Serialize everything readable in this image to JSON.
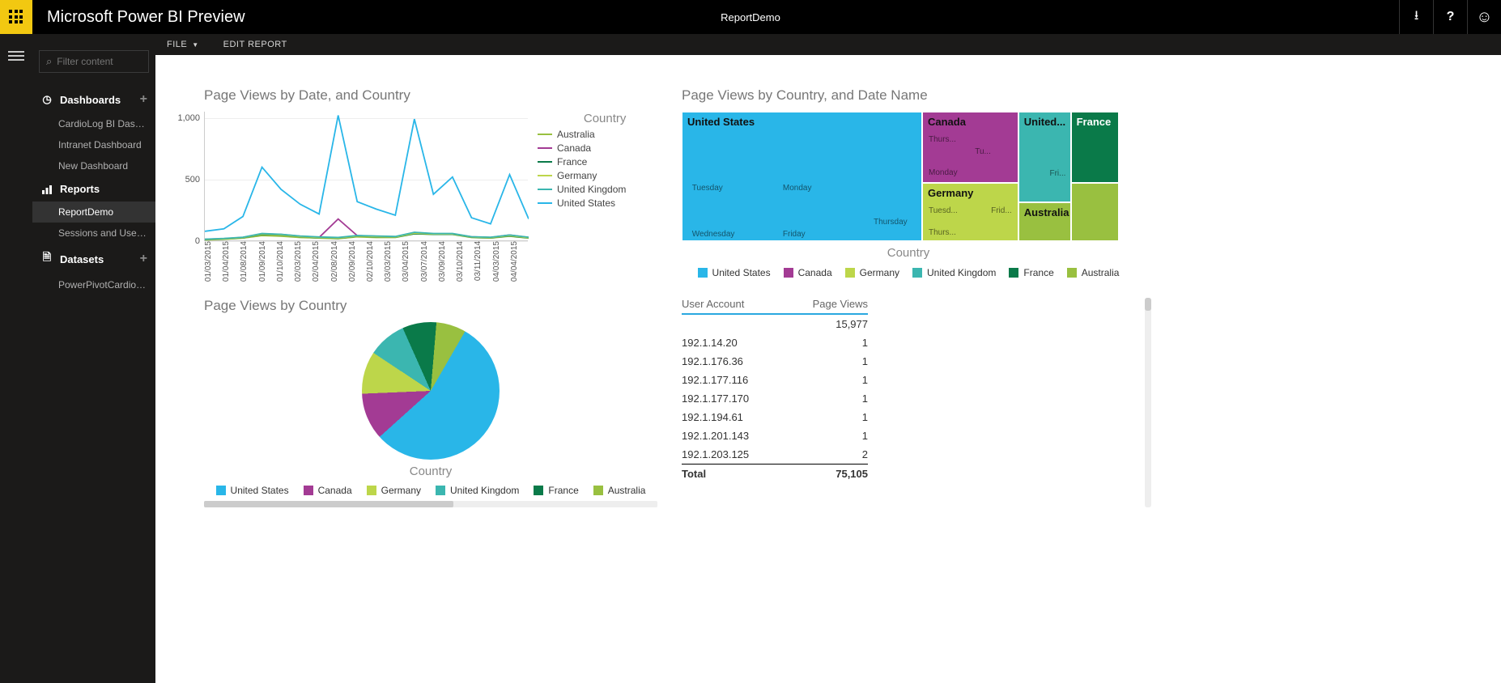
{
  "app": {
    "title": "Microsoft Power BI Preview",
    "report_name": "ReportDemo"
  },
  "topbar_icons": {
    "download": "⭳",
    "help": "?",
    "smile": "☺"
  },
  "sidebar": {
    "search_placeholder": "Filter content",
    "sections": {
      "dashboards": {
        "label": "Dashboards",
        "items": [
          "CardioLog BI Dashboard",
          "Intranet Dashboard",
          "New Dashboard"
        ]
      },
      "reports": {
        "label": "Reports",
        "items": [
          "ReportDemo",
          "Sessions and User Conne..."
        ],
        "active_index": 0
      },
      "datasets": {
        "label": "Datasets",
        "items": [
          "PowerPivotCardioLogBI"
        ]
      }
    }
  },
  "toolbar": {
    "file": "FILE",
    "edit": "EDIT REPORT"
  },
  "line_chart": {
    "title": "Page Views by Date, and Country",
    "type": "line",
    "legend_title": "Country",
    "y_ticks": [
      0,
      500,
      1000
    ],
    "ylim": [
      0,
      1050
    ],
    "x_labels": [
      "01/03/2015",
      "01/04/2015",
      "01/08/2014",
      "01/09/2014",
      "01/10/2014",
      "02/03/2015",
      "02/04/2015",
      "02/08/2014",
      "02/09/2014",
      "02/10/2014",
      "03/03/2015",
      "03/04/2015",
      "03/07/2014",
      "03/09/2014",
      "03/10/2014",
      "03/11/2014",
      "04/03/2015",
      "04/04/2015"
    ],
    "series": [
      {
        "name": "Australia",
        "color": "#99c040",
        "values": [
          10,
          15,
          25,
          45,
          40,
          30,
          25,
          20,
          35,
          30,
          30,
          60,
          55,
          55,
          30,
          25,
          40,
          25
        ]
      },
      {
        "name": "Canada",
        "color": "#a33b94",
        "values": [
          15,
          20,
          30,
          60,
          55,
          40,
          30,
          180,
          45,
          40,
          35,
          70,
          60,
          60,
          35,
          30,
          50,
          30
        ]
      },
      {
        "name": "France",
        "color": "#0a7a49",
        "values": [
          12,
          18,
          28,
          55,
          50,
          36,
          28,
          24,
          40,
          36,
          32,
          60,
          56,
          56,
          32,
          28,
          42,
          26
        ]
      },
      {
        "name": "Germany",
        "color": "#bdd64a",
        "values": [
          14,
          19,
          30,
          58,
          52,
          38,
          30,
          26,
          42,
          38,
          34,
          65,
          58,
          58,
          34,
          30,
          45,
          28
        ]
      },
      {
        "name": "United Kingdom",
        "color": "#3bb6b0",
        "values": [
          16,
          22,
          32,
          62,
          56,
          42,
          34,
          30,
          46,
          42,
          38,
          72,
          62,
          62,
          36,
          32,
          50,
          32
        ]
      },
      {
        "name": "United States",
        "color": "#29b6e8",
        "values": [
          80,
          100,
          200,
          600,
          420,
          300,
          220,
          1020,
          320,
          260,
          210,
          990,
          380,
          520,
          190,
          140,
          540,
          180
        ]
      }
    ],
    "grid_color": "#eeeeee",
    "axis_color": "#cccccc"
  },
  "pie_chart": {
    "title": "Page Views by Country",
    "axis_label": "Country",
    "slices": [
      {
        "name": "United States",
        "color": "#29b6e8",
        "pct": 55
      },
      {
        "name": "Canada",
        "color": "#a33b94",
        "pct": 11
      },
      {
        "name": "Germany",
        "color": "#bdd64a",
        "pct": 10
      },
      {
        "name": "United Kingdom",
        "color": "#3bb6b0",
        "pct": 9
      },
      {
        "name": "France",
        "color": "#0a7a49",
        "pct": 8
      },
      {
        "name": "Australia",
        "color": "#99c040",
        "pct": 7
      }
    ]
  },
  "treemap": {
    "title": "Page Views by Country, and Date Name",
    "axis_label": "Country",
    "legend": [
      {
        "name": "United States",
        "color": "#29b6e8"
      },
      {
        "name": "Canada",
        "color": "#a33b94"
      },
      {
        "name": "Germany",
        "color": "#bdd64a"
      },
      {
        "name": "United Kingdom",
        "color": "#3bb6b0"
      },
      {
        "name": "France",
        "color": "#0a7a49"
      },
      {
        "name": "Australia",
        "color": "#99c040"
      }
    ],
    "cells": {
      "us": {
        "label": "United States",
        "color": "#29b6e8",
        "subs": [
          "Tuesday",
          "Monday",
          "Thursday",
          "Wednesday",
          "Friday"
        ]
      },
      "ca": {
        "label": "Canada",
        "color": "#a33b94",
        "subs": [
          "Thurs...",
          "Tu...",
          "Monday"
        ]
      },
      "de": {
        "label": "Germany",
        "color": "#bdd64a",
        "subs": [
          "Tuesd...",
          "Frid...",
          "Thurs..."
        ]
      },
      "uk": {
        "label": "United...",
        "color": "#3bb6b0",
        "subs": [
          "Fri..."
        ]
      },
      "fr": {
        "label": "France",
        "color": "#0a7a49",
        "subs": []
      },
      "au": {
        "label": "Australia",
        "color": "#99c040",
        "subs": []
      }
    }
  },
  "table": {
    "columns": [
      "User Account",
      "Page Views"
    ],
    "first_value": "15,977",
    "rows": [
      [
        "192.1.14.20",
        "1"
      ],
      [
        "192.1.176.36",
        "1"
      ],
      [
        "192.1.177.116",
        "1"
      ],
      [
        "192.1.177.170",
        "1"
      ],
      [
        "192.1.194.61",
        "1"
      ],
      [
        "192.1.201.143",
        "1"
      ],
      [
        "192.1.203.125",
        "2"
      ]
    ],
    "total_label": "Total",
    "total_value": "75,105"
  }
}
